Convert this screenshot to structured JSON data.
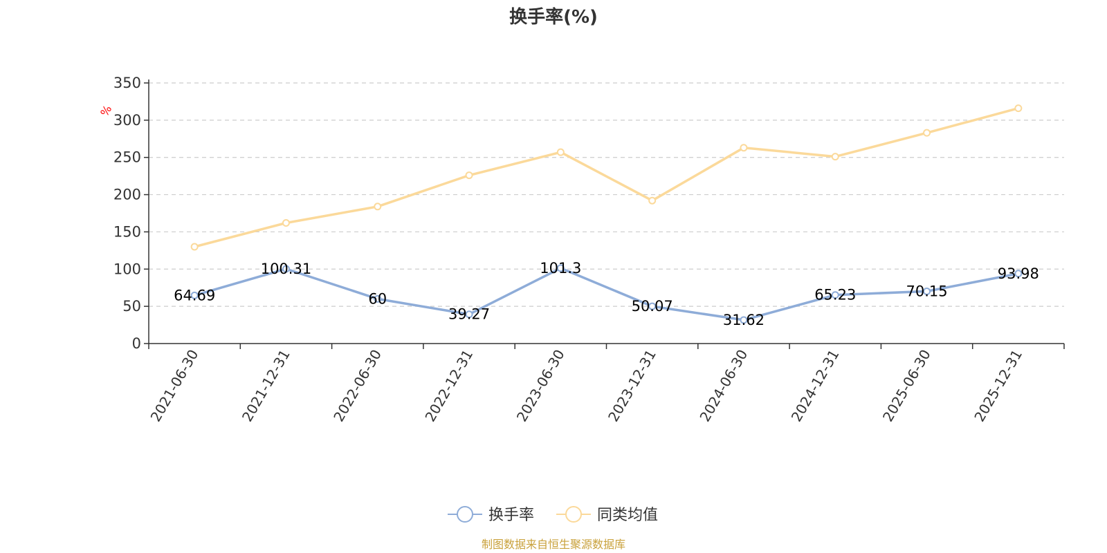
{
  "chart_data": {
    "type": "line",
    "title": "换手率(%)",
    "ylabel": "%",
    "xlabel": "",
    "ylim": [
      0,
      350
    ],
    "yticks": [
      0,
      50,
      100,
      150,
      200,
      250,
      300,
      350
    ],
    "grid": true,
    "legend_position": "bottom-center",
    "categories": [
      "2021-06-30",
      "2021-12-31",
      "2022-06-30",
      "2022-12-31",
      "2023-06-30",
      "2023-12-31",
      "2024-06-30",
      "2024-12-31",
      "2025-06-30",
      "2025-12-31"
    ],
    "series": [
      {
        "name": "换手率",
        "color": "#8eacd8",
        "values": [
          64.69,
          100.31,
          60,
          39.27,
          101.3,
          50.07,
          31.62,
          65.23,
          70.15,
          93.98
        ],
        "labels": [
          "64.69",
          "100.31",
          "60",
          "39.27",
          "101.3",
          "50.07",
          "31.62",
          "65.23",
          "70.15",
          "93.98"
        ]
      },
      {
        "name": "同类均值",
        "color": "#fbd99a",
        "values": [
          130,
          162,
          184,
          226,
          257,
          192,
          263,
          251,
          283,
          316
        ]
      }
    ]
  },
  "source_note": "制图数据来自恒生聚源数据库"
}
